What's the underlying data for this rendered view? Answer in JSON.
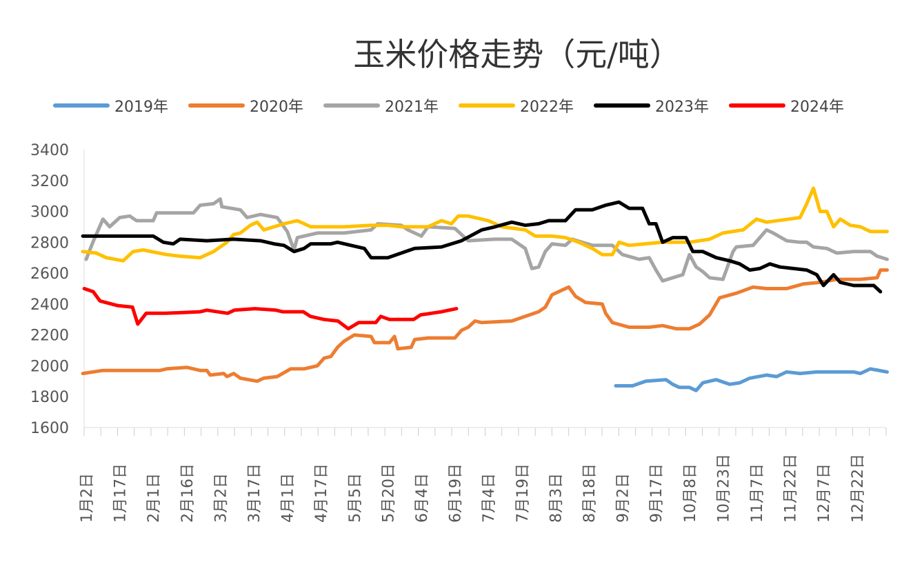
{
  "chart_data": {
    "type": "line",
    "title": "玉米价格走势（元/吨）",
    "xlabel": "",
    "ylabel": "",
    "ylim": [
      1600,
      3400
    ],
    "yticks": [
      1600,
      1800,
      2000,
      2200,
      2400,
      2600,
      2800,
      3000,
      3200,
      3400
    ],
    "categories": [
      "1月2日",
      "1月17日",
      "2月1日",
      "2月16日",
      "3月2日",
      "3月17日",
      "4月1日",
      "4月17日",
      "5月5日",
      "5月20日",
      "6月4日",
      "6月19日",
      "7月4日",
      "7月19日",
      "8月3日",
      "8月18日",
      "9月2日",
      "9月17日",
      "10月8日",
      "10月23日",
      "11月7日",
      "11月22日",
      "12月7日",
      "12月22日"
    ],
    "x_unit": "category index position",
    "grid": false,
    "legend": "top",
    "series": [
      {
        "name": "2019年",
        "color": "#5B9BD5",
        "x": [
          15.8,
          16.3,
          16.7,
          17.3,
          17.5,
          17.7,
          18.0,
          18.2,
          18.4,
          18.8,
          19.2,
          19.5,
          19.8,
          20.3,
          20.6,
          20.9,
          21.3,
          21.8,
          22.9,
          23.1,
          23.4,
          23.9
        ],
        "y": [
          1870,
          1870,
          1900,
          1910,
          1880,
          1860,
          1860,
          1840,
          1890,
          1910,
          1880,
          1890,
          1920,
          1940,
          1930,
          1960,
          1950,
          1960,
          1960,
          1950,
          1980,
          1960
        ]
      },
      {
        "name": "2020年",
        "color": "#ED7D31",
        "x": [
          -0.1,
          0.5,
          2.2,
          2.4,
          3.0,
          3.4,
          3.6,
          3.7,
          4.1,
          4.2,
          4.4,
          4.6,
          5.1,
          5.3,
          5.7,
          6.1,
          6.5,
          6.9,
          7.1,
          7.3,
          7.5,
          7.7,
          8.0,
          8.5,
          8.6,
          9.05,
          9.2,
          9.3,
          9.7,
          9.8,
          10.2,
          11.0,
          11.2,
          11.4,
          11.6,
          11.8,
          12.7,
          13.1,
          13.5,
          13.7,
          13.9,
          14.2,
          14.4,
          14.6,
          14.9,
          15.4,
          15.5,
          15.7,
          16.2,
          16.8,
          17.2,
          17.6,
          18.0,
          18.3,
          18.6,
          18.9,
          19.4,
          19.9,
          20.3,
          20.9,
          21.4,
          21.9,
          22.4,
          23.1,
          23.6,
          23.7,
          23.9
        ],
        "y": [
          1950,
          1970,
          1970,
          1980,
          1990,
          1970,
          1970,
          1940,
          1950,
          1930,
          1950,
          1920,
          1900,
          1920,
          1930,
          1980,
          1980,
          2000,
          2050,
          2060,
          2120,
          2160,
          2200,
          2190,
          2150,
          2150,
          2190,
          2110,
          2120,
          2170,
          2180,
          2180,
          2230,
          2250,
          2290,
          2280,
          2290,
          2320,
          2350,
          2380,
          2460,
          2490,
          2510,
          2450,
          2410,
          2400,
          2340,
          2280,
          2250,
          2250,
          2260,
          2240,
          2240,
          2270,
          2330,
          2440,
          2470,
          2510,
          2500,
          2500,
          2530,
          2540,
          2560,
          2560,
          2570,
          2620,
          2620
        ]
      },
      {
        "name": "2021年",
        "color": "#A5A5A5",
        "x": [
          0.0,
          0.2,
          0.5,
          0.7,
          1.0,
          1.3,
          1.5,
          2.0,
          2.1,
          3.2,
          3.4,
          3.8,
          4.0,
          4.05,
          4.6,
          4.8,
          5.2,
          5.7,
          6.0,
          6.2,
          6.3,
          6.9,
          7.7,
          8.5,
          8.7,
          9.4,
          9.6,
          10.0,
          10.2,
          11.0,
          11.4,
          12.2,
          12.7,
          13.1,
          13.3,
          13.5,
          13.7,
          13.9,
          14.3,
          14.5,
          15.1,
          15.7,
          16.0,
          16.5,
          16.8,
          17.0,
          17.2,
          17.5,
          17.8,
          18.0,
          18.2,
          18.4,
          18.6,
          19.0,
          19.3,
          19.4,
          19.9,
          20.3,
          20.5,
          20.9,
          21.3,
          21.5,
          21.7,
          22.1,
          22.4,
          22.9,
          23.4,
          23.6,
          23.9
        ],
        "y": [
          2690,
          2800,
          2950,
          2900,
          2960,
          2970,
          2940,
          2940,
          2990,
          2990,
          3040,
          3050,
          3080,
          3030,
          3010,
          2960,
          2980,
          2960,
          2870,
          2750,
          2830,
          2860,
          2860,
          2880,
          2920,
          2910,
          2880,
          2840,
          2900,
          2890,
          2810,
          2820,
          2820,
          2760,
          2630,
          2640,
          2740,
          2790,
          2780,
          2820,
          2780,
          2780,
          2720,
          2690,
          2700,
          2620,
          2550,
          2570,
          2590,
          2720,
          2640,
          2610,
          2570,
          2560,
          2740,
          2770,
          2780,
          2880,
          2860,
          2810,
          2800,
          2800,
          2770,
          2760,
          2730,
          2740,
          2740,
          2710,
          2690
        ]
      },
      {
        "name": "2022年",
        "color": "#FFC000",
        "x": [
          -0.1,
          0.3,
          0.6,
          1.1,
          1.4,
          1.7,
          2.4,
          2.8,
          3.4,
          3.8,
          4.2,
          4.4,
          4.6,
          4.9,
          5.1,
          5.3,
          5.9,
          6.3,
          6.7,
          7.7,
          8.5,
          9.0,
          9.4,
          10.2,
          10.6,
          10.9,
          11.1,
          11.4,
          12.0,
          12.4,
          13.1,
          13.4,
          13.9,
          14.3,
          14.7,
          15.1,
          15.4,
          15.7,
          15.9,
          16.2,
          17.2,
          18.0,
          18.6,
          19.0,
          19.6,
          20.0,
          20.3,
          21.3,
          21.5,
          21.7,
          21.9,
          22.1,
          22.3,
          22.5,
          22.8,
          23.1,
          23.4,
          23.9
        ],
        "y": [
          2740,
          2730,
          2700,
          2680,
          2740,
          2750,
          2720,
          2710,
          2700,
          2740,
          2800,
          2850,
          2860,
          2910,
          2930,
          2880,
          2920,
          2940,
          2900,
          2900,
          2910,
          2910,
          2900,
          2900,
          2940,
          2920,
          2970,
          2970,
          2940,
          2900,
          2880,
          2840,
          2840,
          2830,
          2800,
          2760,
          2720,
          2720,
          2800,
          2780,
          2800,
          2800,
          2820,
          2860,
          2880,
          2950,
          2930,
          2960,
          3050,
          3150,
          3000,
          3000,
          2900,
          2950,
          2910,
          2900,
          2870,
          2870
        ]
      },
      {
        "name": "2023年",
        "color": "#000000",
        "x": [
          -0.1,
          0.7,
          2.0,
          2.3,
          2.6,
          2.8,
          3.6,
          4.4,
          5.2,
          5.6,
          5.9,
          6.2,
          6.5,
          6.7,
          7.3,
          7.5,
          7.9,
          8.3,
          8.5,
          9.0,
          9.4,
          9.8,
          10.6,
          11.2,
          11.8,
          12.2,
          12.7,
          13.1,
          13.5,
          13.8,
          14.3,
          14.6,
          15.1,
          15.5,
          15.9,
          16.2,
          16.6,
          16.8,
          17.0,
          17.2,
          17.5,
          17.9,
          18.1,
          18.4,
          18.8,
          19.2,
          19.5,
          19.8,
          20.1,
          20.4,
          20.7,
          21.1,
          21.5,
          21.8,
          22.0,
          22.3,
          22.5,
          22.9,
          23.5,
          23.7
        ],
        "y": [
          2840,
          2840,
          2840,
          2800,
          2790,
          2820,
          2810,
          2820,
          2810,
          2790,
          2780,
          2740,
          2760,
          2790,
          2790,
          2800,
          2780,
          2760,
          2700,
          2700,
          2730,
          2760,
          2770,
          2810,
          2880,
          2900,
          2930,
          2910,
          2920,
          2940,
          2940,
          3010,
          3010,
          3040,
          3060,
          3020,
          3020,
          2920,
          2920,
          2800,
          2830,
          2830,
          2740,
          2740,
          2700,
          2680,
          2660,
          2620,
          2630,
          2660,
          2640,
          2630,
          2620,
          2590,
          2520,
          2590,
          2540,
          2520,
          2520,
          2480
        ]
      },
      {
        "name": "2024年",
        "color": "#FF0000",
        "x": [
          -0.06,
          0.21,
          0.41,
          0.93,
          1.38,
          1.54,
          1.79,
          2.37,
          3.4,
          3.6,
          4.22,
          4.42,
          5.04,
          5.66,
          5.86,
          6.48,
          6.69,
          7.1,
          7.51,
          7.82,
          8.13,
          8.64,
          8.79,
          9.05,
          9.77,
          9.98,
          10.6,
          11.05
        ],
        "y": [
          2500,
          2480,
          2420,
          2390,
          2380,
          2270,
          2340,
          2340,
          2350,
          2360,
          2340,
          2360,
          2370,
          2360,
          2350,
          2350,
          2320,
          2300,
          2290,
          2240,
          2280,
          2280,
          2320,
          2300,
          2300,
          2330,
          2350,
          2370
        ]
      }
    ]
  }
}
